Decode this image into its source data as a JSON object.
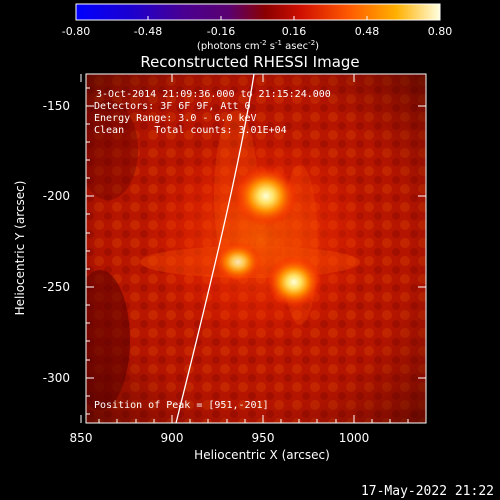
{
  "colorbar": {
    "min": "-0.80",
    "max": "0.80",
    "ticks": [
      "-0.80",
      "-0.48",
      "-0.16",
      "0.16",
      "0.48",
      "0.80"
    ],
    "unit_base": "(photons cm",
    "unit_exp1": "-2",
    "unit_mid": " s",
    "unit_exp2": "-1",
    "unit_mid2": " asec",
    "unit_exp3": "-2",
    "unit_end": ")"
  },
  "title": "Reconstructed RHESSI Image",
  "info": {
    "time": "3-Oct-2014 21:09:36.000 to 21:15:24.000",
    "detectors": "Detectors: 3F 6F 9F, Att 0",
    "energy": "Energy Range: 3.0 - 6.0 keV",
    "clean": "Clean     Total counts: 3.01E+04",
    "peak": "Position of Peak = [951,-201]"
  },
  "x_axis": {
    "label": "Heliocentric X (arcsec)",
    "ticks": [
      "850",
      "900",
      "950",
      "1000"
    ]
  },
  "y_axis": {
    "label": "Heliocentric Y (arcsec)",
    "ticks": [
      "-150",
      "-200",
      "-250",
      "-300"
    ]
  },
  "timestamp": "17-May-2022 21:22",
  "colors": {
    "background": "#000000",
    "text": "#ffffff",
    "image_base": "#c01400",
    "source_core": "#fff6a0"
  },
  "sources": [
    {
      "name": "main-source",
      "x": 951,
      "y": -201
    },
    {
      "name": "lower-right-source",
      "x": 966,
      "y": -247
    },
    {
      "name": "left-source",
      "x": 938,
      "y": -236
    }
  ]
}
